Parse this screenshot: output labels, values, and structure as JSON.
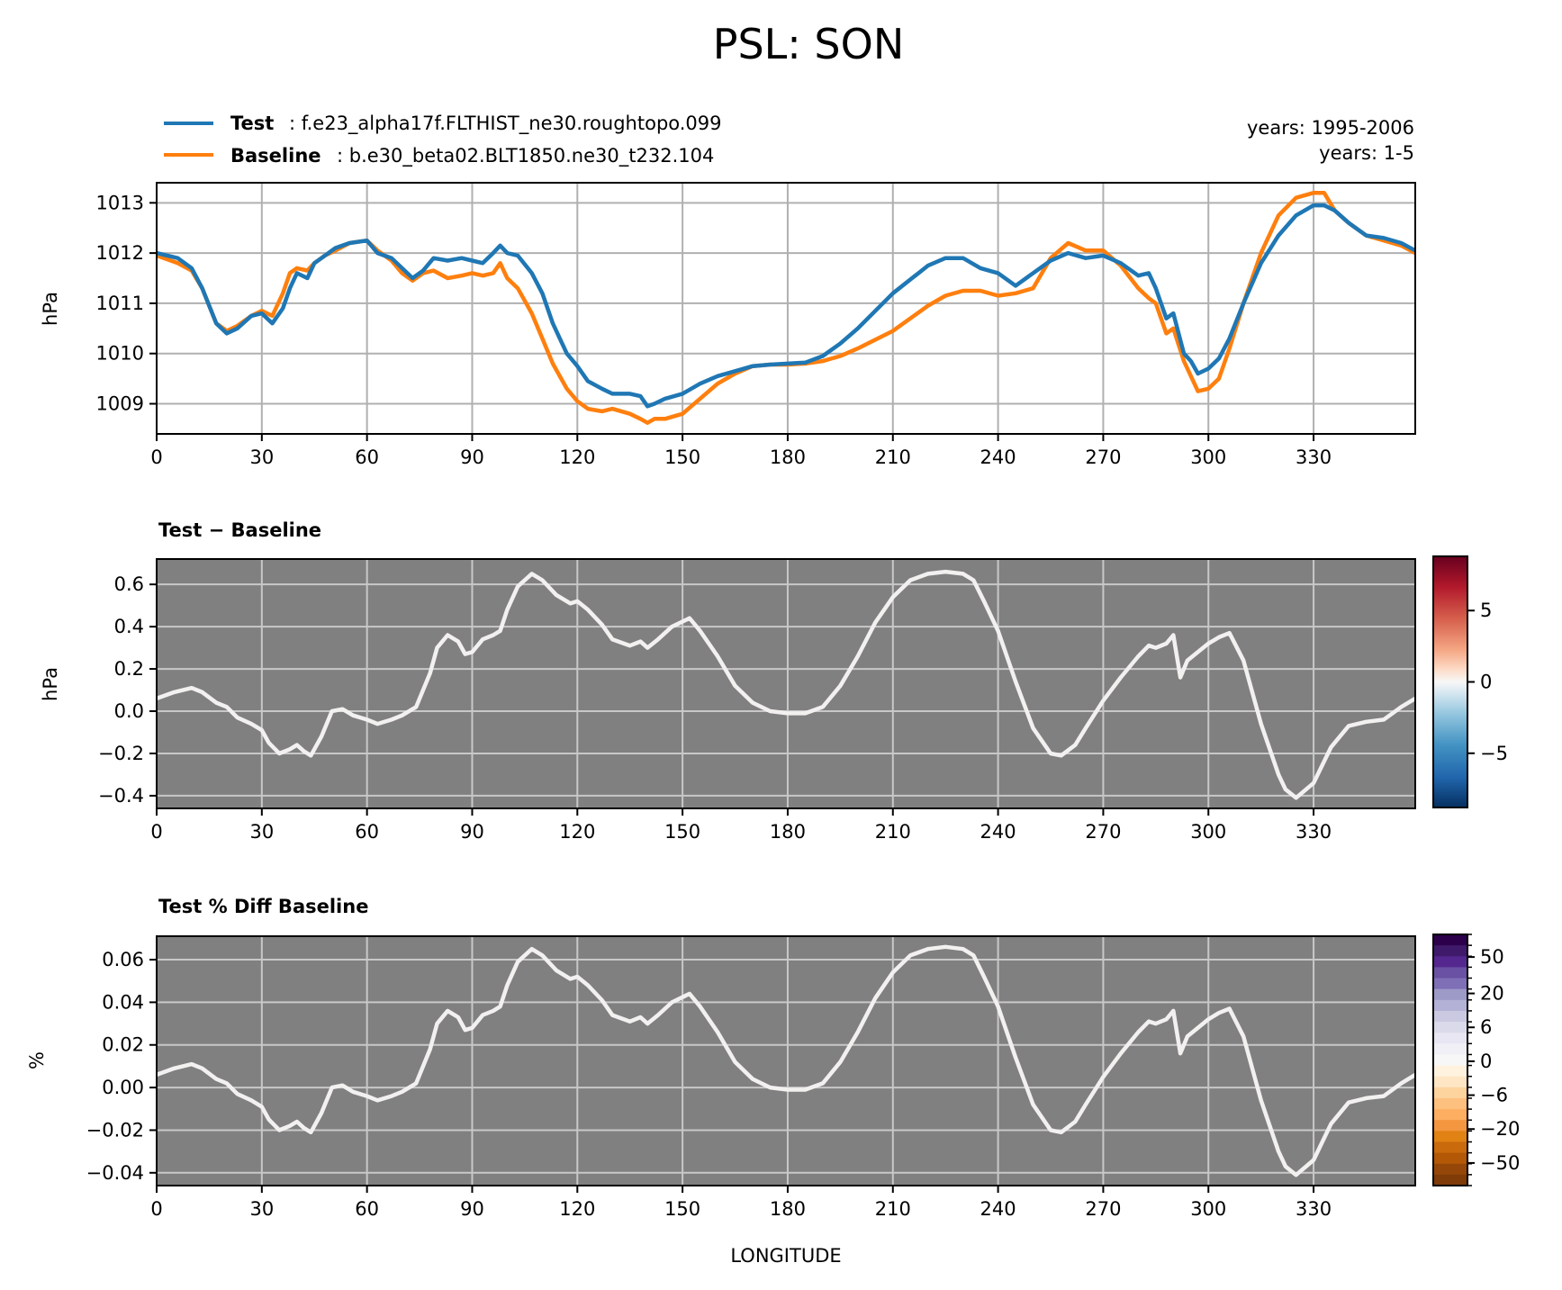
{
  "title": "PSL: SON",
  "legend": {
    "test_key": "Test",
    "test_name": ": f.e23_alpha17f.FLTHIST_ne30.roughtopo.099",
    "base_key": "Baseline",
    "base_name": ": b.e30_beta02.BLT1850.ne30_t232.104",
    "years_test": "years: 1995-2006",
    "years_base": "years: 1-5"
  },
  "colors": {
    "test": "#1f77b4",
    "baseline": "#ff7f0e",
    "diff_bg": "#808080"
  },
  "x_ticks": [
    "0",
    "30",
    "60",
    "90",
    "120",
    "150",
    "180",
    "210",
    "240",
    "270",
    "300",
    "330"
  ],
  "xlabel": "LONGITUDE",
  "chart_data": [
    {
      "type": "line",
      "title": "",
      "ylabel": "hPa",
      "xlim": [
        0,
        359
      ],
      "ylim": [
        1008.4,
        1013.4
      ],
      "y_ticks": [
        "1009",
        "1010",
        "1011",
        "1012",
        "1013"
      ],
      "x": [
        0,
        6,
        10,
        13,
        17,
        20,
        23,
        27,
        30,
        33,
        36,
        38,
        40,
        43,
        45,
        48,
        51,
        55,
        60,
        63,
        67,
        70,
        73,
        76,
        79,
        83,
        87,
        90,
        93,
        96,
        98,
        100,
        103,
        107,
        110,
        113,
        117,
        120,
        123,
        127,
        130,
        135,
        138,
        140,
        142,
        145,
        150,
        155,
        160,
        165,
        170,
        175,
        180,
        185,
        190,
        195,
        200,
        210,
        220,
        225,
        230,
        235,
        240,
        245,
        250,
        255,
        260,
        265,
        270,
        275,
        280,
        283,
        285,
        288,
        290,
        293,
        295,
        297,
        300,
        303,
        306,
        310,
        315,
        320,
        325,
        330,
        333,
        336,
        340,
        345,
        350,
        355,
        359
      ],
      "series": [
        {
          "name": "Test",
          "values": [
            1012.0,
            1011.9,
            1011.7,
            1011.3,
            1010.6,
            1010.4,
            1010.5,
            1010.75,
            1010.8,
            1010.6,
            1010.9,
            1011.3,
            1011.6,
            1011.5,
            1011.8,
            1011.95,
            1012.1,
            1012.2,
            1012.25,
            1012.0,
            1011.9,
            1011.7,
            1011.5,
            1011.65,
            1011.9,
            1011.85,
            1011.9,
            1011.85,
            1011.8,
            1012.0,
            1012.15,
            1012.0,
            1011.95,
            1011.6,
            1011.2,
            1010.6,
            1010.0,
            1009.75,
            1009.45,
            1009.3,
            1009.2,
            1009.2,
            1009.15,
            1008.95,
            1009.0,
            1009.1,
            1009.2,
            1009.4,
            1009.55,
            1009.65,
            1009.75,
            1009.78,
            1009.8,
            1009.82,
            1009.95,
            1010.2,
            1010.5,
            1011.2,
            1011.75,
            1011.9,
            1011.9,
            1011.7,
            1011.6,
            1011.35,
            1011.6,
            1011.85,
            1012.0,
            1011.9,
            1011.95,
            1011.8,
            1011.55,
            1011.6,
            1011.3,
            1010.7,
            1010.8,
            1010.0,
            1009.85,
            1009.6,
            1009.7,
            1009.9,
            1010.3,
            1011.0,
            1011.8,
            1012.35,
            1012.75,
            1012.95,
            1012.95,
            1012.85,
            1012.6,
            1012.35,
            1012.3,
            1012.2,
            1012.05
          ]
        },
        {
          "name": "Baseline",
          "values": [
            1011.95,
            1011.8,
            1011.65,
            1011.3,
            1010.6,
            1010.45,
            1010.55,
            1010.75,
            1010.85,
            1010.75,
            1011.2,
            1011.6,
            1011.7,
            1011.65,
            1011.8,
            1011.95,
            1012.05,
            1012.2,
            1012.25,
            1012.05,
            1011.85,
            1011.6,
            1011.45,
            1011.6,
            1011.65,
            1011.5,
            1011.55,
            1011.6,
            1011.55,
            1011.6,
            1011.8,
            1011.5,
            1011.3,
            1010.8,
            1010.3,
            1009.8,
            1009.3,
            1009.05,
            1008.9,
            1008.85,
            1008.9,
            1008.8,
            1008.7,
            1008.62,
            1008.7,
            1008.7,
            1008.8,
            1009.1,
            1009.4,
            1009.6,
            1009.75,
            1009.78,
            1009.78,
            1009.8,
            1009.85,
            1009.95,
            1010.1,
            1010.45,
            1010.95,
            1011.15,
            1011.25,
            1011.25,
            1011.15,
            1011.2,
            1011.3,
            1011.9,
            1012.2,
            1012.05,
            1012.05,
            1011.75,
            1011.3,
            1011.1,
            1011.0,
            1010.4,
            1010.5,
            1009.85,
            1009.55,
            1009.25,
            1009.3,
            1009.5,
            1010.1,
            1011.0,
            1012.0,
            1012.75,
            1013.1,
            1013.2,
            1013.2,
            1012.85,
            1012.6,
            1012.35,
            1012.25,
            1012.15,
            1012.0
          ]
        }
      ]
    },
    {
      "type": "line",
      "title": "Test − Baseline",
      "ylabel": "hPa",
      "xlim": [
        0,
        359
      ],
      "ylim": [
        -0.46,
        0.72
      ],
      "y_ticks": [
        -0.4,
        -0.2,
        0.0,
        0.2,
        0.4,
        0.6
      ],
      "y_tick_labels": [
        "−0.4",
        "−0.2",
        "0.0",
        "0.2",
        "0.4",
        "0.6"
      ],
      "x": [
        0,
        5,
        10,
        13,
        17,
        20,
        23,
        27,
        30,
        32,
        35,
        38,
        40,
        42,
        44,
        47,
        50,
        53,
        56,
        60,
        63,
        67,
        70,
        74,
        78,
        80,
        83,
        86,
        88,
        90,
        93,
        96,
        98,
        100,
        103,
        107,
        110,
        114,
        118,
        120,
        123,
        127,
        130,
        135,
        138,
        140,
        143,
        147,
        152,
        155,
        160,
        165,
        170,
        175,
        180,
        185,
        190,
        195,
        200,
        205,
        210,
        215,
        220,
        225,
        230,
        233,
        236,
        240,
        245,
        250,
        255,
        258,
        262,
        265,
        270,
        275,
        280,
        283,
        285,
        288,
        290,
        292,
        294,
        297,
        300,
        303,
        306,
        310,
        315,
        320,
        322,
        325,
        330,
        335,
        340,
        345,
        350,
        355,
        359
      ],
      "values": [
        0.06,
        0.09,
        0.11,
        0.09,
        0.04,
        0.02,
        -0.03,
        -0.06,
        -0.09,
        -0.15,
        -0.2,
        -0.18,
        -0.16,
        -0.19,
        -0.21,
        -0.12,
        0.0,
        0.01,
        -0.02,
        -0.04,
        -0.06,
        -0.04,
        -0.02,
        0.02,
        0.18,
        0.3,
        0.36,
        0.33,
        0.27,
        0.28,
        0.34,
        0.36,
        0.38,
        0.48,
        0.59,
        0.65,
        0.62,
        0.55,
        0.51,
        0.52,
        0.48,
        0.41,
        0.34,
        0.31,
        0.33,
        0.3,
        0.34,
        0.4,
        0.44,
        0.38,
        0.26,
        0.12,
        0.04,
        0.0,
        -0.01,
        -0.01,
        0.02,
        0.12,
        0.26,
        0.42,
        0.54,
        0.62,
        0.65,
        0.66,
        0.65,
        0.62,
        0.52,
        0.38,
        0.14,
        -0.08,
        -0.2,
        -0.21,
        -0.16,
        -0.08,
        0.05,
        0.16,
        0.26,
        0.31,
        0.3,
        0.32,
        0.36,
        0.16,
        0.24,
        0.28,
        0.32,
        0.35,
        0.37,
        0.24,
        -0.06,
        -0.3,
        -0.37,
        -0.41,
        -0.34,
        -0.17,
        -0.07,
        -0.05,
        -0.04,
        0.02,
        0.06
      ],
      "colorbar": {
        "cmap": "RdBu_r",
        "ticks": [
          5,
          0,
          -5
        ],
        "tick_labels": [
          "5",
          "0",
          "−5"
        ],
        "range": [
          -8.8,
          8.8
        ]
      }
    },
    {
      "type": "line",
      "title": "Test % Diff Baseline",
      "ylabel": "%",
      "xlim": [
        0,
        359
      ],
      "ylim": [
        -0.046,
        0.071
      ],
      "y_ticks": [
        -0.04,
        -0.02,
        0.0,
        0.02,
        0.04,
        0.06
      ],
      "y_tick_labels": [
        "−0.04",
        "−0.02",
        "0.00",
        "0.02",
        "0.04",
        "0.06"
      ],
      "x": [
        0,
        5,
        10,
        13,
        17,
        20,
        23,
        27,
        30,
        32,
        35,
        38,
        40,
        42,
        44,
        47,
        50,
        53,
        56,
        60,
        63,
        67,
        70,
        74,
        78,
        80,
        83,
        86,
        88,
        90,
        93,
        96,
        98,
        100,
        103,
        107,
        110,
        114,
        118,
        120,
        123,
        127,
        130,
        135,
        138,
        140,
        143,
        147,
        152,
        155,
        160,
        165,
        170,
        175,
        180,
        185,
        190,
        195,
        200,
        205,
        210,
        215,
        220,
        225,
        230,
        233,
        236,
        240,
        245,
        250,
        255,
        258,
        262,
        265,
        270,
        275,
        280,
        283,
        285,
        288,
        290,
        292,
        294,
        297,
        300,
        303,
        306,
        310,
        315,
        320,
        322,
        325,
        330,
        335,
        340,
        345,
        350,
        355,
        359
      ],
      "values": [
        0.006,
        0.009,
        0.011,
        0.009,
        0.004,
        0.002,
        -0.003,
        -0.006,
        -0.009,
        -0.015,
        -0.02,
        -0.018,
        -0.016,
        -0.019,
        -0.021,
        -0.012,
        0.0,
        0.001,
        -0.002,
        -0.004,
        -0.006,
        -0.004,
        -0.002,
        0.002,
        0.018,
        0.03,
        0.036,
        0.033,
        0.027,
        0.028,
        0.034,
        0.036,
        0.038,
        0.048,
        0.059,
        0.065,
        0.062,
        0.055,
        0.051,
        0.052,
        0.048,
        0.041,
        0.034,
        0.031,
        0.033,
        0.03,
        0.034,
        0.04,
        0.044,
        0.038,
        0.026,
        0.012,
        0.004,
        0.0,
        -0.001,
        -0.001,
        0.002,
        0.012,
        0.026,
        0.042,
        0.054,
        0.062,
        0.065,
        0.066,
        0.065,
        0.062,
        0.052,
        0.038,
        0.014,
        -0.008,
        -0.02,
        -0.021,
        -0.016,
        -0.008,
        0.005,
        0.016,
        0.026,
        0.031,
        0.03,
        0.032,
        0.036,
        0.016,
        0.024,
        0.028,
        0.032,
        0.035,
        0.037,
        0.024,
        -0.006,
        -0.03,
        -0.037,
        -0.041,
        -0.034,
        -0.017,
        -0.007,
        -0.005,
        -0.004,
        0.002,
        0.006
      ],
      "colorbar": {
        "cmap": "PuOr_r",
        "tick_labels": [
          "50",
          "20",
          "6",
          "0",
          "−6",
          "−20",
          "−50"
        ]
      }
    }
  ]
}
